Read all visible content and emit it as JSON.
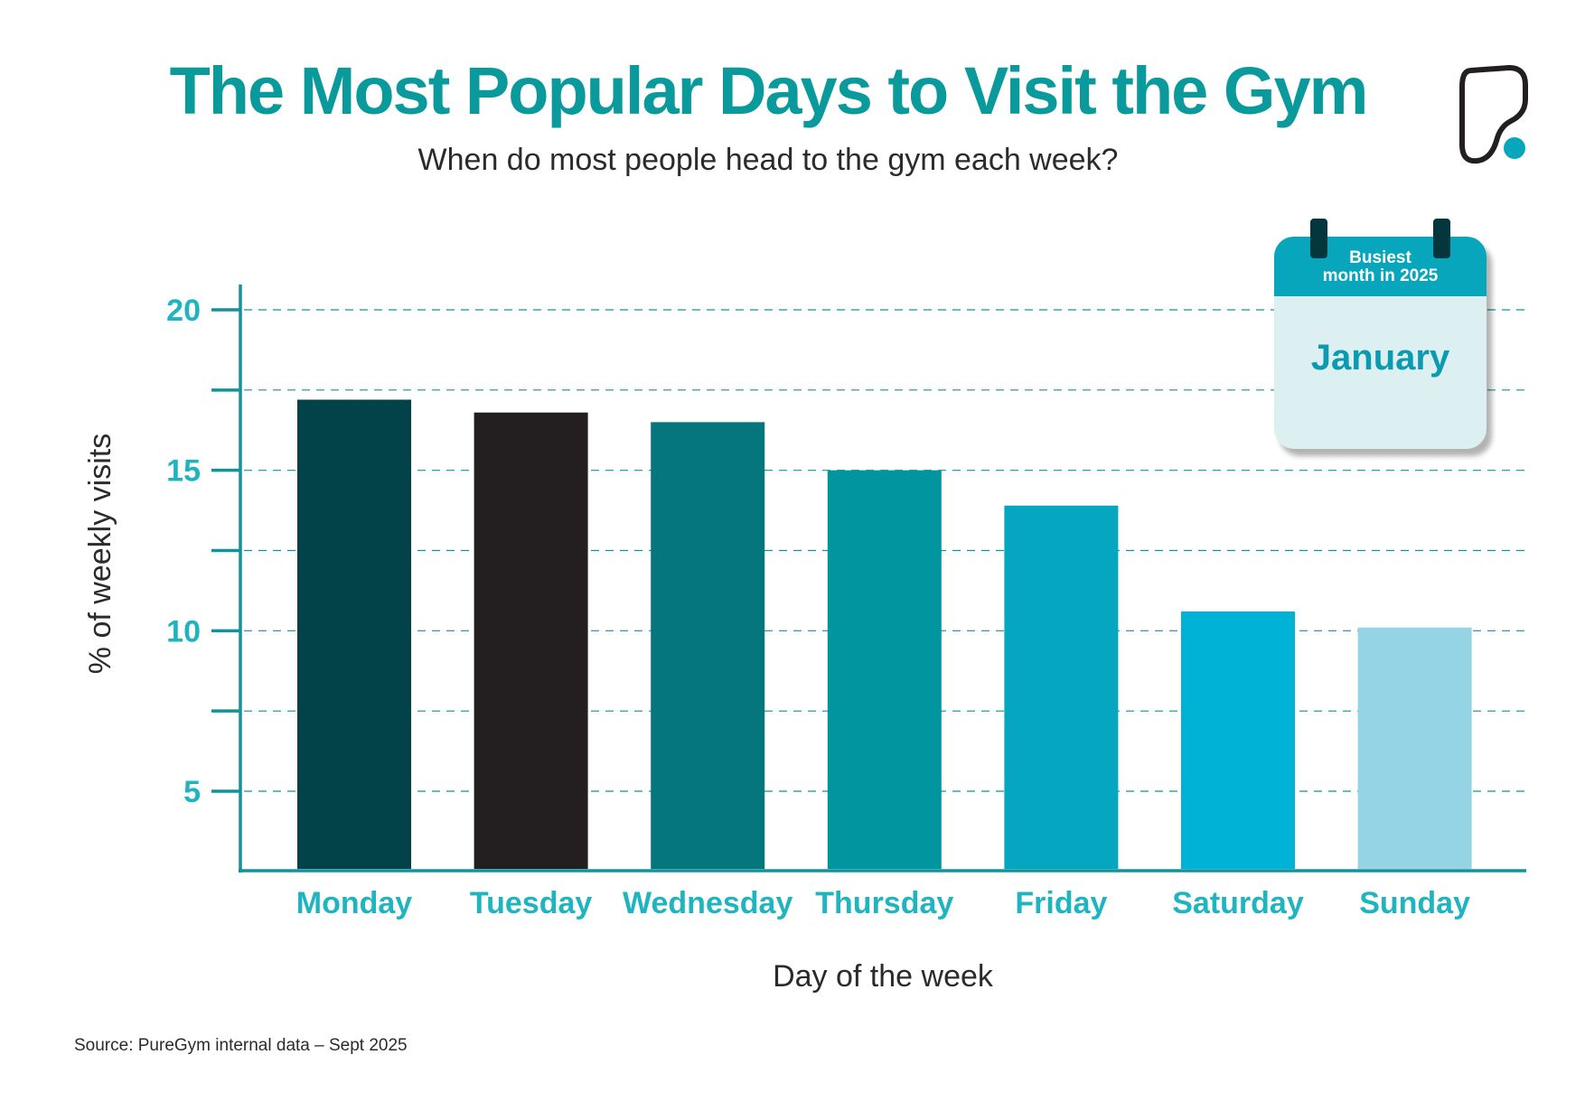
{
  "header": {
    "title": "The Most Popular Days to Visit the Gym",
    "subtitle": "When do most people head to the gym each week?"
  },
  "logo": {
    "name": "puregym-logo",
    "text": "PureGym"
  },
  "callout": {
    "label": "Busiest month in 2025",
    "label_line1": "Busiest",
    "label_line2": "month in 2025",
    "value": "January"
  },
  "source": "Source: PureGym internal data – Sept 2025",
  "chart_data": {
    "type": "bar",
    "title": "The Most Popular Days to Visit the Gym",
    "subtitle": "When do most people head to the gym each week?",
    "xlabel": "Day of the week",
    "ylabel": "% of weekly visits",
    "categories": [
      "Monday",
      "Tuesday",
      "Wednesday",
      "Thursday",
      "Friday",
      "Saturday",
      "Sunday"
    ],
    "values": [
      17.2,
      16.8,
      16.5,
      15.0,
      13.9,
      10.6,
      10.1
    ],
    "colors": [
      "#02434a",
      "#231f20",
      "#04767c",
      "#0195a0",
      "#05a6bf",
      "#00b2d6",
      "#94d4e5"
    ],
    "yticks": [
      5,
      10,
      15,
      20
    ],
    "ylim": [
      2.5,
      20.8
    ],
    "grid": true,
    "grid_style": "dashed",
    "axis_color": "#12929a",
    "label_color": "#1fb5c0",
    "title_color": "#0b9a9c"
  }
}
